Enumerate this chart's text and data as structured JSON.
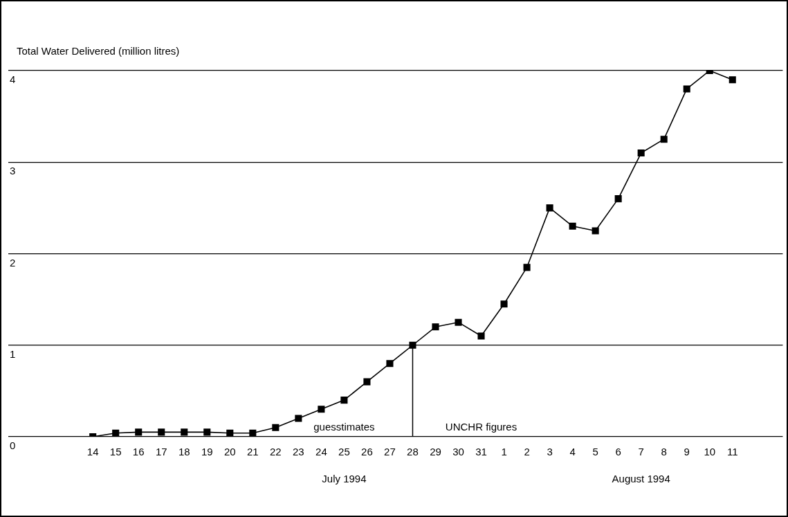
{
  "chart_data": {
    "type": "line",
    "ylabel": "Total Water Delivered (million litres)",
    "categories": [
      "14",
      "15",
      "16",
      "17",
      "18",
      "19",
      "20",
      "21",
      "22",
      "23",
      "24",
      "25",
      "26",
      "27",
      "28",
      "29",
      "30",
      "31",
      "1",
      "2",
      "3",
      "4",
      "5",
      "6",
      "7",
      "8",
      "9",
      "10",
      "11"
    ],
    "series": [
      {
        "color": "#000000",
        "values": [
          0.0,
          0.04,
          0.05,
          0.05,
          0.05,
          0.05,
          0.04,
          0.04,
          0.1,
          0.2,
          0.3,
          0.4,
          0.6,
          0.8,
          1.0,
          1.2,
          1.25,
          1.1,
          1.45,
          1.85,
          2.5,
          2.3,
          2.25,
          2.6,
          3.1,
          3.25,
          3.8,
          4.0,
          3.9
        ]
      }
    ],
    "ylim": [
      0,
      4
    ],
    "yticks": [
      0,
      1,
      2,
      3,
      4
    ],
    "grid": "y",
    "marker": "square",
    "line_style": "solid",
    "ref_lines": [
      {
        "axis": "x",
        "value": "28"
      }
    ],
    "annotations": [
      "guesstimates",
      "UNCHR figures",
      "July 1994",
      "August 1994"
    ]
  }
}
